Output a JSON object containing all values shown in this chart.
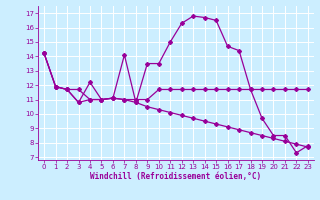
{
  "xlabel": "Windchill (Refroidissement éolien,°C)",
  "background_color": "#cceeff",
  "line_color": "#990099",
  "grid_color": "#ffffff",
  "xlim": [
    -0.5,
    23.5
  ],
  "ylim": [
    6.8,
    17.5
  ],
  "yticks": [
    7,
    8,
    9,
    10,
    11,
    12,
    13,
    14,
    15,
    16,
    17
  ],
  "xticks": [
    0,
    1,
    2,
    3,
    4,
    5,
    6,
    7,
    8,
    9,
    10,
    11,
    12,
    13,
    14,
    15,
    16,
    17,
    18,
    19,
    20,
    21,
    22,
    23
  ],
  "line1_x": [
    0,
    1,
    2,
    3,
    4,
    5,
    6,
    7,
    8,
    9,
    10,
    11,
    12,
    13,
    14,
    15,
    16,
    17,
    18,
    19,
    20,
    21,
    22,
    23
  ],
  "line1_y": [
    14.2,
    11.9,
    11.7,
    10.8,
    12.2,
    11.0,
    11.1,
    14.1,
    10.8,
    13.5,
    13.5,
    15.0,
    16.3,
    16.8,
    16.7,
    16.5,
    14.7,
    14.4,
    11.7,
    9.7,
    8.5,
    8.5,
    7.3,
    7.8
  ],
  "line2_x": [
    0,
    1,
    2,
    3,
    4,
    5,
    6,
    7,
    8,
    9,
    10,
    11,
    12,
    13,
    14,
    15,
    16,
    17,
    18,
    19,
    20,
    21,
    22,
    23
  ],
  "line2_y": [
    14.2,
    11.9,
    11.7,
    11.7,
    11.0,
    11.0,
    11.1,
    11.0,
    11.0,
    11.0,
    11.7,
    11.7,
    11.7,
    11.7,
    11.7,
    11.7,
    11.7,
    11.7,
    11.7,
    11.7,
    11.7,
    11.7,
    11.7,
    11.7
  ],
  "line3_x": [
    0,
    1,
    2,
    3,
    4,
    5,
    6,
    7,
    8,
    9,
    10,
    11,
    12,
    13,
    14,
    15,
    16,
    17,
    18,
    19,
    20,
    21,
    22,
    23
  ],
  "line3_y": [
    14.2,
    11.9,
    11.7,
    10.8,
    11.0,
    11.0,
    11.1,
    11.0,
    10.8,
    10.5,
    10.3,
    10.1,
    9.9,
    9.7,
    9.5,
    9.3,
    9.1,
    8.9,
    8.7,
    8.5,
    8.3,
    8.1,
    7.9,
    7.7
  ]
}
